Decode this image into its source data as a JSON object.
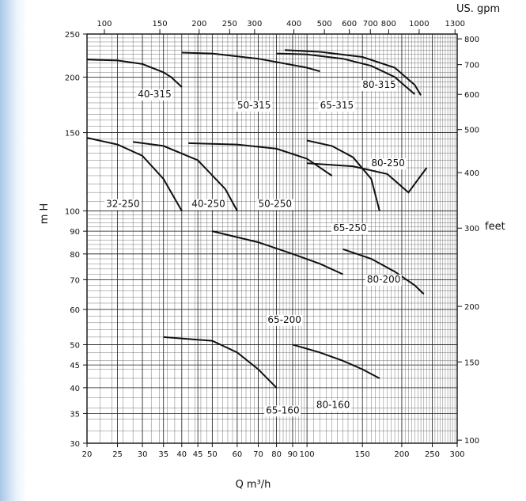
{
  "chart_data": {
    "type": "line",
    "title": "",
    "xlabel": "Q m³/h",
    "ylabel": "m H",
    "top_axis_label": "US. gpm",
    "right_axis_label": "feet",
    "x_scale": "log",
    "y_scale": "log",
    "xlim": [
      20,
      300
    ],
    "ylim": [
      30,
      250
    ],
    "grid": true,
    "x_ticks": [
      20,
      25,
      30,
      35,
      40,
      45,
      50,
      60,
      70,
      80,
      90,
      100,
      150,
      200,
      250,
      300
    ],
    "x_tick_labels": [
      "20",
      "25",
      "30",
      "35",
      "40",
      "45",
      "50",
      "60",
      "70",
      "80",
      "90",
      "100",
      "150",
      "200",
      "250",
      "300"
    ],
    "y_ticks": [
      30,
      35,
      40,
      45,
      50,
      60,
      70,
      80,
      90,
      100,
      150,
      200,
      250
    ],
    "y_tick_labels": [
      "30",
      "35",
      "40",
      "45",
      "50",
      "60",
      "70",
      "80",
      "90",
      "100",
      "150",
      "200",
      "250"
    ],
    "top_ticks": [
      100,
      150,
      200,
      250,
      300,
      400,
      500,
      600,
      700,
      800,
      1000,
      1300
    ],
    "top_tick_labels": [
      "100",
      "150",
      "200",
      "250",
      "300",
      "400",
      "500",
      "600",
      "700",
      "800",
      "1000",
      "1300"
    ],
    "right_ticks": [
      100,
      150,
      200,
      300,
      400,
      500,
      600,
      700,
      800
    ],
    "right_tick_labels": [
      "100",
      "150",
      "200",
      "300",
      "400",
      "500",
      "600",
      "700",
      "800"
    ],
    "series": [
      {
        "name": "40-315",
        "label_at": [
          29,
          180
        ],
        "points": [
          [
            20,
            219
          ],
          [
            25,
            218
          ],
          [
            30,
            214
          ],
          [
            35,
            205
          ],
          [
            37,
            200
          ],
          [
            40,
            190
          ]
        ]
      },
      {
        "name": "50-315",
        "label_at": [
          60,
          170
        ],
        "points": [
          [
            40,
            227
          ],
          [
            50,
            226
          ],
          [
            70,
            220
          ],
          [
            90,
            213
          ],
          [
            100,
            210
          ],
          [
            110,
            206
          ]
        ]
      },
      {
        "name": "65-315",
        "label_at": [
          110,
          170
        ],
        "points": [
          [
            80,
            226
          ],
          [
            100,
            225
          ],
          [
            130,
            220
          ],
          [
            160,
            212
          ],
          [
            190,
            200
          ],
          [
            220,
            183
          ]
        ]
      },
      {
        "name": "80-315",
        "label_at": [
          150,
          189
        ],
        "points": [
          [
            85,
            230
          ],
          [
            110,
            228
          ],
          [
            150,
            222
          ],
          [
            190,
            210
          ],
          [
            220,
            192
          ],
          [
            230,
            182
          ]
        ]
      },
      {
        "name": "32-250",
        "label_at": [
          23,
          102
        ],
        "points": [
          [
            20,
            146
          ],
          [
            25,
            141
          ],
          [
            30,
            133
          ],
          [
            35,
            118
          ],
          [
            40,
            100
          ]
        ]
      },
      {
        "name": "40-250",
        "label_at": [
          43,
          102
        ],
        "points": [
          [
            28,
            143
          ],
          [
            35,
            140
          ],
          [
            45,
            130
          ],
          [
            55,
            112
          ],
          [
            60,
            100
          ]
        ]
      },
      {
        "name": "50-250",
        "label_at": [
          70,
          102
        ],
        "points": [
          [
            42,
            142
          ],
          [
            60,
            141
          ],
          [
            80,
            138
          ],
          [
            100,
            131
          ],
          [
            120,
            120
          ]
        ]
      },
      {
        "name": "65-250",
        "label_at": [
          121,
          90
        ],
        "points": [
          [
            100,
            144
          ],
          [
            120,
            140
          ],
          [
            140,
            132
          ],
          [
            160,
            118
          ],
          [
            170,
            100
          ]
        ]
      },
      {
        "name": "80-250",
        "label_at": [
          160,
          126
        ],
        "points": [
          [
            100,
            128
          ],
          [
            140,
            126
          ],
          [
            180,
            121
          ],
          [
            210,
            110
          ],
          [
            240,
            125
          ]
        ]
      },
      {
        "name": "65-200",
        "label_at": [
          75,
          56
        ],
        "points": [
          [
            50,
            90
          ],
          [
            70,
            85
          ],
          [
            90,
            80
          ],
          [
            110,
            76
          ],
          [
            130,
            72
          ]
        ]
      },
      {
        "name": "80-200",
        "label_at": [
          155,
          69
        ],
        "points": [
          [
            130,
            82
          ],
          [
            160,
            78
          ],
          [
            190,
            73
          ],
          [
            220,
            68
          ],
          [
            235,
            65
          ]
        ]
      },
      {
        "name": "65-160",
        "label_at": [
          74,
          35
        ],
        "points": [
          [
            35,
            52
          ],
          [
            50,
            51
          ],
          [
            60,
            48
          ],
          [
            70,
            44
          ],
          [
            80,
            40
          ]
        ]
      },
      {
        "name": "80-160",
        "label_at": [
          107,
          36
        ],
        "points": [
          [
            90,
            50
          ],
          [
            110,
            48
          ],
          [
            130,
            46
          ],
          [
            150,
            44
          ],
          [
            170,
            42
          ]
        ]
      }
    ]
  }
}
